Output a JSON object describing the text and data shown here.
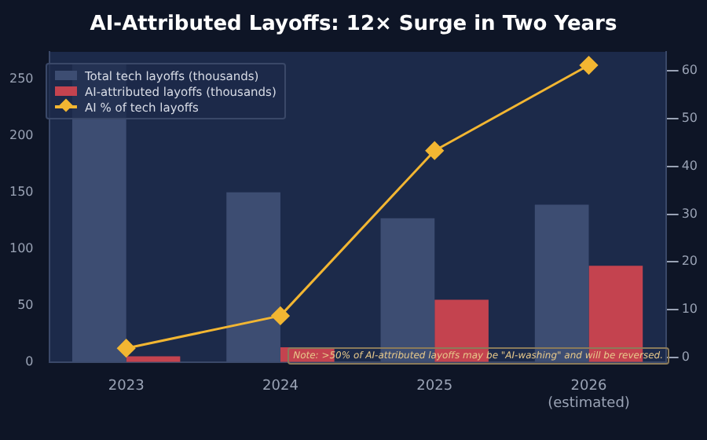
{
  "chart_data": {
    "type": "bar",
    "title": "AI-Attributed Layoffs: 12× Surge in Two Years",
    "categories": [
      "2023",
      "2024",
      "2025",
      "2026\n(estimated)"
    ],
    "series": [
      {
        "name": "Total tech layoffs (thousands)",
        "color": "#3d4d72",
        "values": [
          264,
          150,
          127,
          139
        ]
      },
      {
        "name": "AI-attributed layoffs (thousands)",
        "color": "#c4434f",
        "values": [
          5,
          13,
          55,
          85
        ]
      },
      {
        "name": "AI % of tech layoffs",
        "type": "line",
        "axis": "y2",
        "color": "#f2b632",
        "values": [
          1.9,
          8.7,
          43.3,
          61.2
        ]
      }
    ],
    "ylim": [
      0,
      274
    ],
    "yticks": [
      0,
      50,
      100,
      150,
      200,
      250
    ],
    "y2lim": [
      -1,
      64
    ],
    "y2ticks": [
      0,
      10,
      20,
      30,
      40,
      50,
      60
    ],
    "grid": false,
    "legend": "top left",
    "marker": "diamond",
    "line_style": "solid",
    "annotations": [
      "Note: >50% of AI-attributed layoffs may be \"AI-washing\" and will be reversed."
    ]
  }
}
